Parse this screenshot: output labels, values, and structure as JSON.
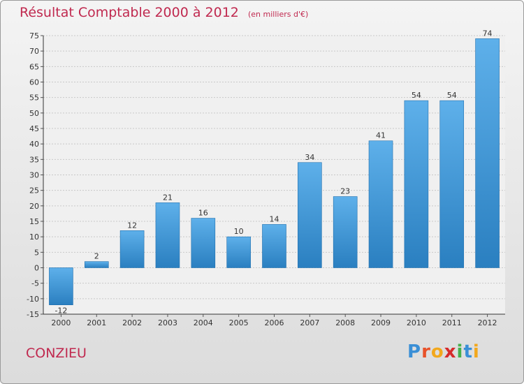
{
  "title": "Résultat Comptable 2000 à 2012",
  "unit": "(en milliers d'€)",
  "town": "CONZIEU",
  "brand": "Proxiti",
  "colors": {
    "title": "#c0294f",
    "bar_top": "#5eb0ea",
    "bar_bottom": "#2a7fc0",
    "plot_bg": "#f0f0f0",
    "grid": "#c8c8c8",
    "brand_letters": [
      "#3a8fd6",
      "#e8522a",
      "#f2a81d",
      "#d62b2b",
      "#46b04a",
      "#3a8fd6",
      "#f2a81d"
    ]
  },
  "chart_data": {
    "type": "bar",
    "categories": [
      "2000",
      "2001",
      "2002",
      "2003",
      "2004",
      "2005",
      "2006",
      "2007",
      "2008",
      "2009",
      "2010",
      "2011",
      "2012"
    ],
    "values": [
      -12,
      2,
      12,
      21,
      16,
      10,
      14,
      34,
      23,
      41,
      54,
      54,
      74
    ],
    "ylim": [
      -15,
      75
    ],
    "yticks": [
      -15,
      -10,
      -5,
      0,
      5,
      10,
      15,
      20,
      25,
      30,
      35,
      40,
      45,
      50,
      55,
      60,
      65,
      70,
      75
    ],
    "grid": true,
    "data_labels": true
  }
}
